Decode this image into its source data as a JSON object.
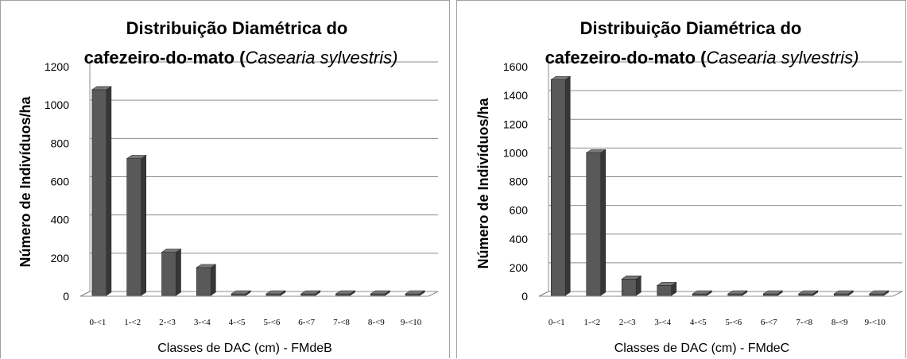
{
  "chart_data": [
    {
      "type": "bar",
      "title": "Distribuição Diamétrica do",
      "title_line2_plain": "cafezeiro-do-mato (",
      "title_line2_italic": "Casearia sylvestris",
      "title_line2_close": ")",
      "xlabel": "Classes de DAC (cm) - FMdeB",
      "ylabel": "Número de Indivíduos/ha",
      "ylim": [
        0,
        1200
      ],
      "yticks": [
        "0",
        "200",
        "400",
        "600",
        "800",
        "1000",
        "1200"
      ],
      "categories": [
        "0-<1",
        "1-<2",
        "2-<3",
        "3-<4",
        "4-<5",
        "5-<6",
        "6-<7",
        "7-<8",
        "8-<9",
        "9-<10"
      ],
      "values": [
        1080,
        720,
        230,
        150,
        2,
        0,
        0,
        0,
        0,
        0
      ],
      "grid": true,
      "bar_style": "3d",
      "bar_color": "#595959"
    },
    {
      "type": "bar",
      "title": "Distribuição Diamétrica do",
      "title_line2_plain": "cafezeiro-do-mato (",
      "title_line2_italic": "Casearia sylvestris",
      "title_line2_close": ")",
      "xlabel": "Classes de DAC (cm) - FMdeC",
      "ylabel": "Número de Indivíduos/ha",
      "ylim": [
        0,
        1600
      ],
      "yticks": [
        "0",
        "200",
        "400",
        "600",
        "800",
        "1000",
        "1200",
        "1400",
        "1600"
      ],
      "categories": [
        "0-<1",
        "1-<2",
        "2-<3",
        "3-<4",
        "4-<5",
        "5-<6",
        "6-<7",
        "7-<8",
        "8-<9",
        "9-<10"
      ],
      "values": [
        1510,
        1000,
        120,
        75,
        10,
        5,
        15,
        12,
        15,
        5
      ],
      "grid": true,
      "bar_style": "3d",
      "bar_color": "#595959"
    }
  ]
}
